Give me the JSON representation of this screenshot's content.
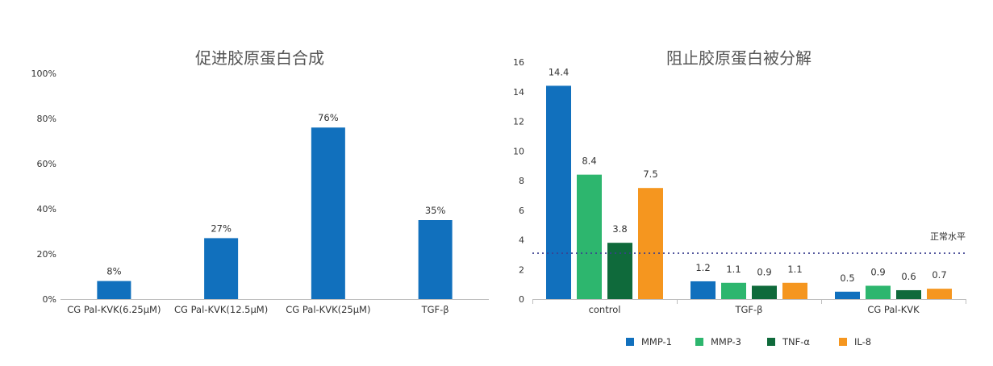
{
  "chart_data": [
    {
      "type": "bar",
      "title": "促进胶原蛋白合成",
      "categories": [
        "CG Pal-KVK(6.25μM)",
        "CG Pal-KVK(12.5μM)",
        "CG Pal-KVK(25μM)",
        "TGF-β"
      ],
      "values": [
        8,
        27,
        76,
        35
      ],
      "data_labels": [
        "8%",
        "27%",
        "76%",
        "35%"
      ],
      "yticks": [
        "0%",
        "20%",
        "40%",
        "60%",
        "80%",
        "100%"
      ],
      "ylim": [
        0,
        100
      ],
      "color": "#1170bd",
      "grid": false
    },
    {
      "type": "bar",
      "title": "阻止胶原蛋白被分解",
      "categories": [
        "control",
        "TGF-β",
        "CG Pal-KVK"
      ],
      "series": [
        {
          "name": "MMP-1",
          "color": "#1170bd",
          "values": [
            14.4,
            1.2,
            0.5
          ]
        },
        {
          "name": "MMP-3",
          "color": "#2db66e",
          "values": [
            8.4,
            1.1,
            0.9
          ]
        },
        {
          "name": "TNF-α",
          "color": "#0f6a3b",
          "values": [
            3.8,
            0.9,
            0.6
          ]
        },
        {
          "name": "IL-8",
          "color": "#f5961f",
          "values": [
            7.5,
            1.1,
            0.7
          ]
        }
      ],
      "ylim": [
        0,
        16
      ],
      "yticks": [
        "0",
        "2",
        "4",
        "6",
        "8",
        "10",
        "12",
        "14",
        "16"
      ],
      "reference_line": {
        "value": 3.1,
        "label": "正常水平",
        "color": "#3a3f8f",
        "style": "dotted"
      },
      "legend": "bottom",
      "grid": false
    }
  ]
}
